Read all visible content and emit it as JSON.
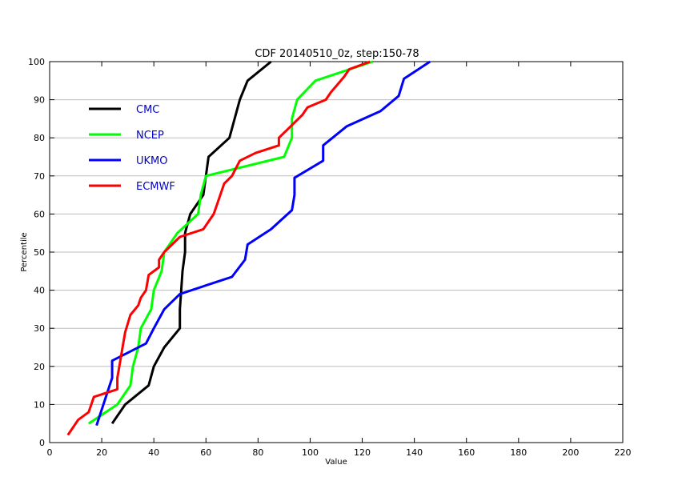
{
  "chart_data": {
    "type": "line",
    "title": "CDF 20140510_0z, step:150-78",
    "xlabel": "Value",
    "ylabel": "Percentile",
    "xlim": [
      0,
      220
    ],
    "ylim": [
      0,
      100
    ],
    "x_ticks": [
      0,
      20,
      40,
      60,
      80,
      100,
      120,
      140,
      160,
      180,
      200,
      220
    ],
    "y_ticks": [
      0,
      10,
      20,
      30,
      40,
      50,
      60,
      70,
      80,
      90,
      100
    ],
    "grid": "horizontal",
    "legend_position": "top-left",
    "series": [
      {
        "name": "CMC",
        "color": "#000000",
        "points": [
          [
            24,
            5
          ],
          [
            29,
            10
          ],
          [
            38,
            15
          ],
          [
            40,
            20
          ],
          [
            44,
            25
          ],
          [
            50,
            30
          ],
          [
            50,
            35
          ],
          [
            50.5,
            40
          ],
          [
            51,
            45
          ],
          [
            52,
            50
          ],
          [
            52,
            55
          ],
          [
            54,
            60
          ],
          [
            59,
            65
          ],
          [
            61,
            75
          ],
          [
            69,
            80
          ],
          [
            71,
            85
          ],
          [
            73,
            90
          ],
          [
            76,
            95
          ],
          [
            85,
            100
          ]
        ]
      },
      {
        "name": "NCEP",
        "color": "#00ff00",
        "points": [
          [
            15,
            5
          ],
          [
            26,
            10
          ],
          [
            31,
            15
          ],
          [
            32,
            20
          ],
          [
            34,
            25
          ],
          [
            35,
            30
          ],
          [
            39,
            35
          ],
          [
            40,
            40
          ],
          [
            43,
            45
          ],
          [
            44,
            50
          ],
          [
            49,
            55
          ],
          [
            57,
            60
          ],
          [
            58,
            65
          ],
          [
            60,
            70
          ],
          [
            90,
            75
          ],
          [
            93,
            80
          ],
          [
            93,
            85
          ],
          [
            95,
            90
          ],
          [
            102,
            95
          ],
          [
            124,
            100
          ]
        ]
      },
      {
        "name": "UKMO",
        "color": "#0000ff",
        "points": [
          [
            18,
            4.5
          ],
          [
            24,
            17
          ],
          [
            24,
            21.5
          ],
          [
            37,
            26
          ],
          [
            40,
            30
          ],
          [
            44,
            35
          ],
          [
            50,
            39
          ],
          [
            70,
            43.5
          ],
          [
            75,
            48
          ],
          [
            76,
            52
          ],
          [
            85,
            56
          ],
          [
            93,
            61
          ],
          [
            94,
            65
          ],
          [
            94,
            69.5
          ],
          [
            105,
            74
          ],
          [
            105,
            78
          ],
          [
            114,
            83
          ],
          [
            127,
            87
          ],
          [
            134,
            91
          ],
          [
            136,
            95.5
          ],
          [
            146,
            100
          ]
        ]
      },
      {
        "name": "ECMWF",
        "color": "#ff0000",
        "points": [
          [
            7,
            2
          ],
          [
            11,
            6
          ],
          [
            15,
            8
          ],
          [
            17,
            12
          ],
          [
            26,
            14
          ],
          [
            26,
            17
          ],
          [
            27,
            21
          ],
          [
            28,
            25
          ],
          [
            29,
            29
          ],
          [
            31,
            33.5
          ],
          [
            34,
            36
          ],
          [
            35,
            38
          ],
          [
            37,
            40
          ],
          [
            38,
            44
          ],
          [
            42,
            46
          ],
          [
            42,
            48
          ],
          [
            44,
            50
          ],
          [
            50,
            54
          ],
          [
            59,
            56
          ],
          [
            61,
            58
          ],
          [
            63,
            60
          ],
          [
            64,
            62
          ],
          [
            67,
            68
          ],
          [
            70,
            70
          ],
          [
            73,
            74
          ],
          [
            79,
            76
          ],
          [
            88,
            78
          ],
          [
            88,
            80
          ],
          [
            91,
            82
          ],
          [
            97,
            86
          ],
          [
            99,
            88
          ],
          [
            106,
            90
          ],
          [
            108,
            92
          ],
          [
            113,
            96
          ],
          [
            115,
            98
          ],
          [
            123,
            100
          ]
        ]
      }
    ]
  }
}
